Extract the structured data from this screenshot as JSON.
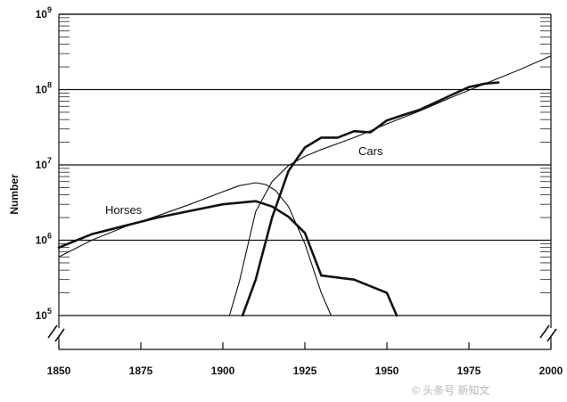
{
  "chart_data": {
    "type": "line",
    "title": "",
    "xlabel": "",
    "ylabel": "Number",
    "xlim": [
      1850,
      2000
    ],
    "ylim": [
      100000,
      1000000000
    ],
    "yscale": "log",
    "xticks": [
      1850,
      1875,
      1900,
      1925,
      1950,
      1975,
      2000
    ],
    "xtick_labels": [
      "1850",
      "1875",
      "1900",
      "1925",
      "1950",
      "1975",
      "2000"
    ],
    "yticks": [
      100000,
      1000000,
      10000000,
      100000000,
      1000000000
    ],
    "ytick_labels": [
      {
        "base": "10",
        "exp": "5"
      },
      {
        "base": "10",
        "exp": "6"
      },
      {
        "base": "10",
        "exp": "7"
      },
      {
        "base": "10",
        "exp": "8"
      },
      {
        "base": "10",
        "exp": "9"
      }
    ],
    "horizontal_gridlines": true,
    "axis_break": true,
    "series": [
      {
        "name": "Horses",
        "style": "data",
        "x": [
          1850,
          1860,
          1870,
          1880,
          1890,
          1900,
          1910,
          1915,
          1920,
          1925,
          1930,
          1940,
          1950,
          1953
        ],
        "y": [
          800000,
          1200000,
          1550000,
          2000000,
          2450000,
          3000000,
          3300000,
          2800000,
          2050000,
          1250000,
          340000,
          300000,
          200000,
          100000
        ]
      },
      {
        "name": "Horses",
        "style": "fit",
        "x": [
          1850,
          1860,
          1870,
          1880,
          1890,
          1900,
          1905,
          1910,
          1913,
          1916,
          1920,
          1925,
          1930,
          1933
        ],
        "y": [
          600000,
          1000000,
          1500000,
          2100000,
          3000000,
          4400000,
          5300000,
          5800000,
          5500000,
          4600000,
          2800000,
          900000,
          200000,
          100000
        ]
      },
      {
        "name": "Cars",
        "style": "data",
        "x": [
          1906,
          1910,
          1915,
          1920,
          1925,
          1930,
          1935,
          1940,
          1945,
          1950,
          1955,
          1960,
          1965,
          1970,
          1975,
          1980,
          1984
        ],
        "y": [
          100000,
          300000,
          2000000,
          8300000,
          17000000,
          23000000,
          23000000,
          28000000,
          27000000,
          39000000,
          46000000,
          54000000,
          68000000,
          86000000,
          108000000,
          120000000,
          124000000
        ]
      },
      {
        "name": "Cars",
        "style": "fit",
        "x": [
          1902,
          1905,
          1910,
          1915,
          1920,
          1925,
          1930,
          1940,
          1950,
          1960,
          1970,
          1980,
          1990,
          2000
        ],
        "y": [
          100000,
          280000,
          2400000,
          6000000,
          9800000,
          13000000,
          16000000,
          23000000,
          35000000,
          52000000,
          80000000,
          120000000,
          180000000,
          280000000
        ]
      }
    ],
    "labels": {
      "horses": "Horses",
      "cars": "Cars"
    }
  },
  "watermark": "© 头条号 新知文"
}
